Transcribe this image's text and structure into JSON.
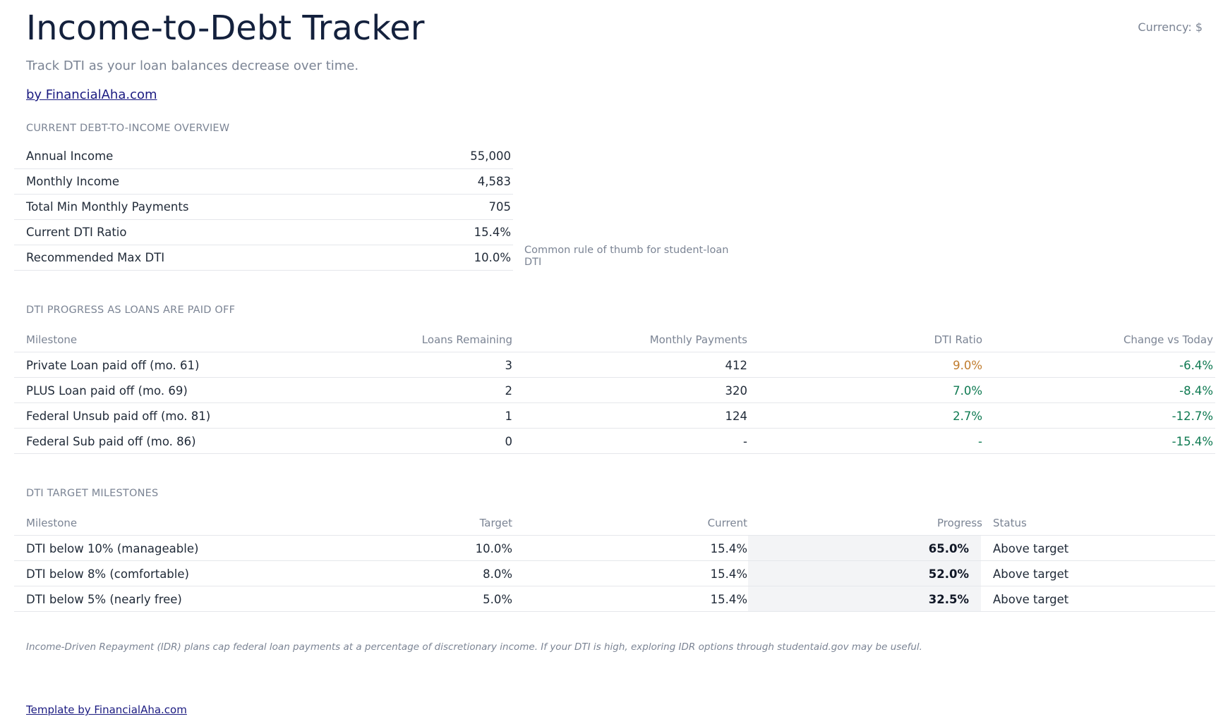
{
  "header": {
    "title": "Income-to-Debt Tracker",
    "subtitle": "Track DTI as your loan balances decrease over time.",
    "byline": "by FinancialAha.com",
    "currency": "Currency: $"
  },
  "overview": {
    "section_label": "CURRENT DEBT-TO-INCOME OVERVIEW",
    "rows": [
      {
        "label": "Annual Income",
        "value": "55,000"
      },
      {
        "label": "Monthly Income",
        "value": "4,583"
      },
      {
        "label": "Total Min Monthly Payments",
        "value": "705"
      },
      {
        "label": "Current DTI Ratio",
        "value": "15.4%"
      },
      {
        "label": "Recommended Max DTI",
        "value": "10.0%"
      }
    ],
    "note": "Common rule of thumb for student-loan DTI"
  },
  "progress": {
    "section_label": "DTI PROGRESS AS LOANS ARE PAID OFF",
    "columns": [
      "Milestone",
      "Loans Remaining",
      "Monthly Payments",
      "DTI Ratio",
      "Change vs Today"
    ],
    "rows": [
      {
        "milestone": "Private Loan paid off (mo. 61)",
        "loans": "3",
        "payments": "412",
        "dti": "9.0%",
        "change": "-6.4%"
      },
      {
        "milestone": "PLUS Loan paid off (mo. 69)",
        "loans": "2",
        "payments": "320",
        "dti": "7.0%",
        "change": "-8.4%"
      },
      {
        "milestone": "Federal Unsub paid off (mo. 81)",
        "loans": "1",
        "payments": "124",
        "dti": "2.7%",
        "change": "-12.7%"
      },
      {
        "milestone": "Federal Sub paid off (mo. 86)",
        "loans": "0",
        "payments": "-",
        "dti": "-",
        "change": "-15.4%"
      }
    ],
    "colors": {
      "warning": "#c07c2e",
      "good": "#0f7a52"
    }
  },
  "targets": {
    "section_label": "DTI TARGET MILESTONES",
    "columns": [
      "Milestone",
      "Target",
      "Current",
      "Progress",
      "Status"
    ],
    "rows": [
      {
        "milestone": "DTI below 10% (manageable)",
        "target": "10.0%",
        "current": "15.4%",
        "progress": "65.0%",
        "status": "Above target"
      },
      {
        "milestone": "DTI below 8% (comfortable)",
        "target": "8.0%",
        "current": "15.4%",
        "progress": "52.0%",
        "status": "Above target"
      },
      {
        "milestone": "DTI below 5% (nearly free)",
        "target": "5.0%",
        "current": "15.4%",
        "progress": "32.5%",
        "status": "Above target"
      }
    ]
  },
  "footer": {
    "note": "Income-Driven Repayment (IDR) plans cap federal loan payments at a percentage of discretionary income. If your DTI is high, exploring IDR options through studentaid.gov may be useful.",
    "template_link": "Template by FinancialAha.com"
  }
}
